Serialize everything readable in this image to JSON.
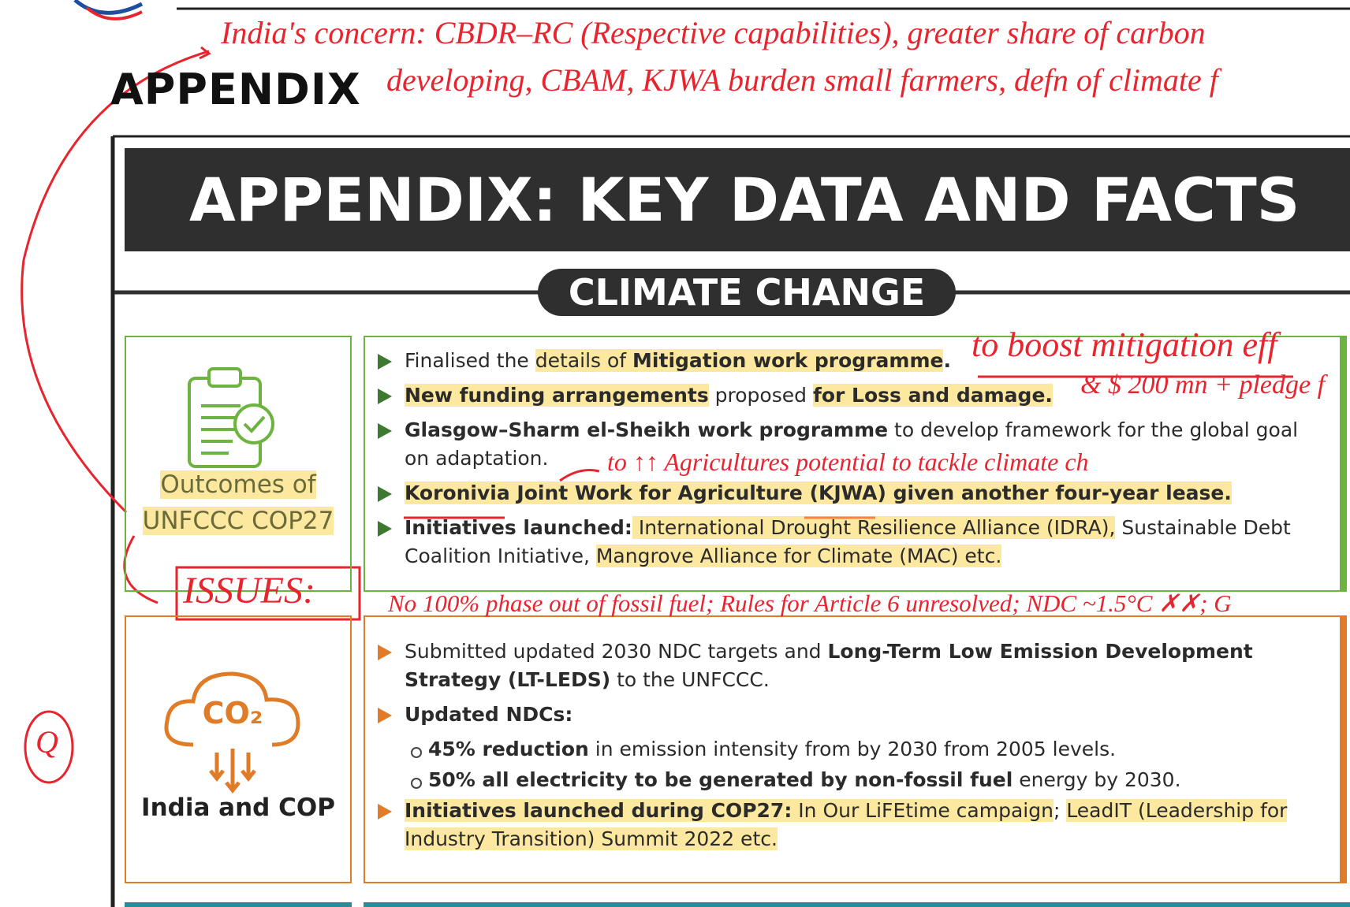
{
  "heading": "APPENDIX",
  "banner": "APPENDIX: KEY DATA AND FACTS",
  "section": "CLIMATE CHANGE",
  "blocks": [
    {
      "label": [
        "Outcomes of",
        "UNFCCC COP27"
      ],
      "color": "#6db33f",
      "bullets": [
        [
          {
            "text": "Finalised the "
          },
          {
            "text": "details of ",
            "highlight": true
          },
          {
            "text": "Mitigation work programme",
            "bold": true,
            "highlight": true
          },
          {
            "text": ".",
            "bold": true
          }
        ],
        [
          {
            "text": "New funding arrangements",
            "bold": true,
            "highlight": true
          },
          {
            "text": " proposed "
          },
          {
            "text": "for Loss and damage.",
            "bold": true,
            "highlight": true
          }
        ],
        [
          {
            "text": "Glasgow–Sharm el-Sheikh work programme",
            "bold": true
          },
          {
            "text": " to develop framework for the global goal on adaptation."
          }
        ],
        [
          {
            "text": "Koronivia Joint Work for Agriculture (KJWA) given another four-year lease.",
            "bold": true,
            "highlight": true
          }
        ],
        [
          {
            "text": "Initiatives launched:",
            "bold": true
          },
          {
            "text": " International Drought Resilience Alliance (IDRA),",
            "highlight": true
          },
          {
            "text": " Sustainable Debt Coalition Initiative, "
          },
          {
            "text": "Mangrove Alliance for Climate (MAC) etc.",
            "highlight": true
          }
        ]
      ]
    },
    {
      "label": [
        "India and COP"
      ],
      "icon_text": "CO₂",
      "color": "#e07b28",
      "bullets": [
        [
          {
            "text": "Submitted updated 2030 NDC targets and "
          },
          {
            "text": "Long-Term Low Emission Development Strategy (LT-LEDS)",
            "bold": true
          },
          {
            "text": " to the UNFCCC."
          }
        ],
        [
          {
            "text": "Updated NDCs:",
            "bold": true
          }
        ],
        [
          {
            "text": "Initiatives launched during COP27:",
            "bold": true,
            "highlight": true
          },
          {
            "text": " In Our LiFEtime campaign",
            "highlight": true
          },
          {
            "text": "; "
          },
          {
            "text": "LeadIT (Leadership for Industry Transition) Summit 2022 etc.",
            "highlight": true
          }
        ]
      ],
      "sub_bullets": [
        [
          {
            "text": "45% reduction",
            "bold": true
          },
          {
            "text": " in emission intensity from by 2030 from 2005 levels."
          }
        ],
        [
          {
            "text": "50% all electricity to be generated by non-fossil fuel",
            "bold": true
          },
          {
            "text": " energy by 2030."
          }
        ]
      ]
    }
  ],
  "annotations": [
    "India's concern: CBDR–RC (Respective capabilities), greater share of carbon",
    "developing, CBAM, KJWA burden small farmers, defn of climate f",
    "to boost mitigation eff",
    "& $ 200 mn + pledge f",
    "to ↑↑ Agricultures potential to tackle climate ch",
    "ISSUES:",
    "No 100% phase out of fossil fuel; Rules for Article 6 unresolved; NDC ~1.5°C ✗✗; G",
    "Q"
  ]
}
